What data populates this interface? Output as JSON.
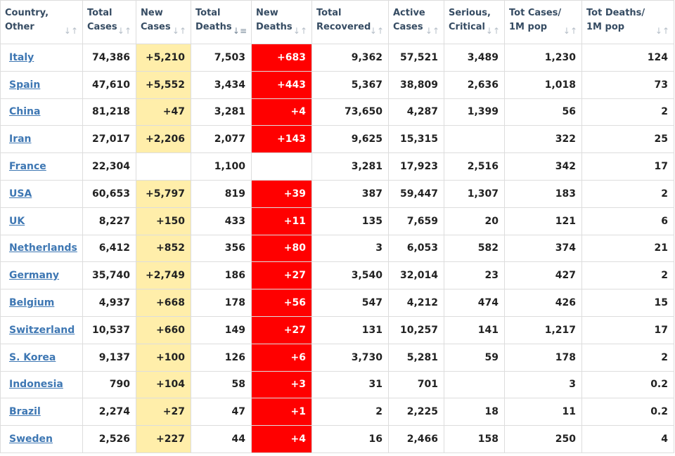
{
  "headers": [
    {
      "line1": "Country,",
      "line2": "Other",
      "sort_icon": "sort-icon"
    },
    {
      "line1": "Total",
      "line2": "Cases",
      "sort_icon": "sort-icon"
    },
    {
      "line1": "New",
      "line2": "Cases",
      "sort_icon": "sort-icon"
    },
    {
      "line1": "Total",
      "line2": "Deaths",
      "sort_icon": "sort-descending-icon"
    },
    {
      "line1": "New",
      "line2": "Deaths",
      "sort_icon": "sort-icon"
    },
    {
      "line1": "Total",
      "line2": "Recovered",
      "sort_icon": "sort-icon"
    },
    {
      "line1": "Active",
      "line2": "Cases",
      "sort_icon": "sort-icon"
    },
    {
      "line1": "Serious,",
      "line2": "Critical",
      "sort_icon": "sort-icon"
    },
    {
      "line1": "Tot Cases/",
      "line2": "1M pop",
      "sort_icon": "sort-icon"
    },
    {
      "line1": "Tot Deaths/",
      "line2": "1M pop",
      "sort_icon": "sort-icon"
    }
  ],
  "colors": {
    "link": "#3e77b3",
    "header_text": "#364c63",
    "new_cases_bg": "#ffeeaa",
    "new_deaths_bg": "#ff0000",
    "border": "#dddddd"
  },
  "rows": [
    {
      "country": "Italy",
      "total_cases": "74,386",
      "new_cases": "+5,210",
      "total_deaths": "7,503",
      "new_deaths": "+683",
      "total_recovered": "9,362",
      "active_cases": "57,521",
      "serious_critical": "3,489",
      "cases_per_1m": "1,230",
      "deaths_per_1m": "124"
    },
    {
      "country": "Spain",
      "total_cases": "47,610",
      "new_cases": "+5,552",
      "total_deaths": "3,434",
      "new_deaths": "+443",
      "total_recovered": "5,367",
      "active_cases": "38,809",
      "serious_critical": "2,636",
      "cases_per_1m": "1,018",
      "deaths_per_1m": "73"
    },
    {
      "country": "China",
      "total_cases": "81,218",
      "new_cases": "+47",
      "total_deaths": "3,281",
      "new_deaths": "+4",
      "total_recovered": "73,650",
      "active_cases": "4,287",
      "serious_critical": "1,399",
      "cases_per_1m": "56",
      "deaths_per_1m": "2"
    },
    {
      "country": "Iran",
      "total_cases": "27,017",
      "new_cases": "+2,206",
      "total_deaths": "2,077",
      "new_deaths": "+143",
      "total_recovered": "9,625",
      "active_cases": "15,315",
      "serious_critical": "",
      "cases_per_1m": "322",
      "deaths_per_1m": "25"
    },
    {
      "country": "France",
      "total_cases": "22,304",
      "new_cases": "",
      "total_deaths": "1,100",
      "new_deaths": "",
      "total_recovered": "3,281",
      "active_cases": "17,923",
      "serious_critical": "2,516",
      "cases_per_1m": "342",
      "deaths_per_1m": "17"
    },
    {
      "country": "USA",
      "total_cases": "60,653",
      "new_cases": "+5,797",
      "total_deaths": "819",
      "new_deaths": "+39",
      "total_recovered": "387",
      "active_cases": "59,447",
      "serious_critical": "1,307",
      "cases_per_1m": "183",
      "deaths_per_1m": "2"
    },
    {
      "country": "UK",
      "total_cases": "8,227",
      "new_cases": "+150",
      "total_deaths": "433",
      "new_deaths": "+11",
      "total_recovered": "135",
      "active_cases": "7,659",
      "serious_critical": "20",
      "cases_per_1m": "121",
      "deaths_per_1m": "6"
    },
    {
      "country": "Netherlands",
      "total_cases": "6,412",
      "new_cases": "+852",
      "total_deaths": "356",
      "new_deaths": "+80",
      "total_recovered": "3",
      "active_cases": "6,053",
      "serious_critical": "582",
      "cases_per_1m": "374",
      "deaths_per_1m": "21"
    },
    {
      "country": "Germany",
      "total_cases": "35,740",
      "new_cases": "+2,749",
      "total_deaths": "186",
      "new_deaths": "+27",
      "total_recovered": "3,540",
      "active_cases": "32,014",
      "serious_critical": "23",
      "cases_per_1m": "427",
      "deaths_per_1m": "2"
    },
    {
      "country": "Belgium",
      "total_cases": "4,937",
      "new_cases": "+668",
      "total_deaths": "178",
      "new_deaths": "+56",
      "total_recovered": "547",
      "active_cases": "4,212",
      "serious_critical": "474",
      "cases_per_1m": "426",
      "deaths_per_1m": "15"
    },
    {
      "country": "Switzerland",
      "total_cases": "10,537",
      "new_cases": "+660",
      "total_deaths": "149",
      "new_deaths": "+27",
      "total_recovered": "131",
      "active_cases": "10,257",
      "serious_critical": "141",
      "cases_per_1m": "1,217",
      "deaths_per_1m": "17"
    },
    {
      "country": "S. Korea",
      "total_cases": "9,137",
      "new_cases": "+100",
      "total_deaths": "126",
      "new_deaths": "+6",
      "total_recovered": "3,730",
      "active_cases": "5,281",
      "serious_critical": "59",
      "cases_per_1m": "178",
      "deaths_per_1m": "2"
    },
    {
      "country": "Indonesia",
      "total_cases": "790",
      "new_cases": "+104",
      "total_deaths": "58",
      "new_deaths": "+3",
      "total_recovered": "31",
      "active_cases": "701",
      "serious_critical": "",
      "cases_per_1m": "3",
      "deaths_per_1m": "0.2"
    },
    {
      "country": "Brazil",
      "total_cases": "2,274",
      "new_cases": "+27",
      "total_deaths": "47",
      "new_deaths": "+1",
      "total_recovered": "2",
      "active_cases": "2,225",
      "serious_critical": "18",
      "cases_per_1m": "11",
      "deaths_per_1m": "0.2"
    },
    {
      "country": "Sweden",
      "total_cases": "2,526",
      "new_cases": "+227",
      "total_deaths": "44",
      "new_deaths": "+4",
      "total_recovered": "16",
      "active_cases": "2,466",
      "serious_critical": "158",
      "cases_per_1m": "250",
      "deaths_per_1m": "4"
    }
  ]
}
